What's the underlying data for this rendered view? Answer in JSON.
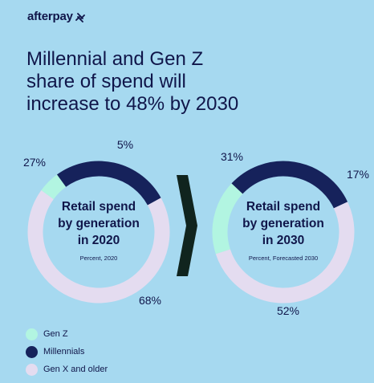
{
  "brand": {
    "name": "afterpay"
  },
  "title_lines": [
    "Millennial and Gen Z",
    "share of spend will",
    "increase to 48% by 2030"
  ],
  "colors": {
    "background": "#a6d9f0",
    "gen_z": "#b2f5e1",
    "millennials": "#16225b",
    "gen_x": "#e4dcf0",
    "divider": "#10241e",
    "text": "#10164a"
  },
  "chart_data": [
    {
      "type": "pie",
      "title": "Retail spend by generation in 2020",
      "title_lines": [
        "Retail spend",
        "by generation",
        "in 2020"
      ],
      "subtitle": "Percent, 2020",
      "categories": [
        "Gen Z",
        "Millennials",
        "Gen X and older"
      ],
      "values": [
        5,
        27,
        68
      ],
      "labels": [
        "5%",
        "27%",
        "68%"
      ]
    },
    {
      "type": "pie",
      "title": "Retail spend by generation in 2030",
      "title_lines": [
        "Retail spend",
        "by generation",
        "in 2030"
      ],
      "subtitle": "Percent, Forecasted 2030",
      "categories": [
        "Gen Z",
        "Millennials",
        "Gen X and older"
      ],
      "values": [
        17,
        31,
        52
      ],
      "labels": [
        "17%",
        "31%",
        "52%"
      ]
    }
  ],
  "legend": [
    {
      "label": "Gen Z",
      "color": "#b2f5e1"
    },
    {
      "label": "Millennials",
      "color": "#16225b"
    },
    {
      "label": "Gen X and older",
      "color": "#e4dcf0"
    }
  ]
}
